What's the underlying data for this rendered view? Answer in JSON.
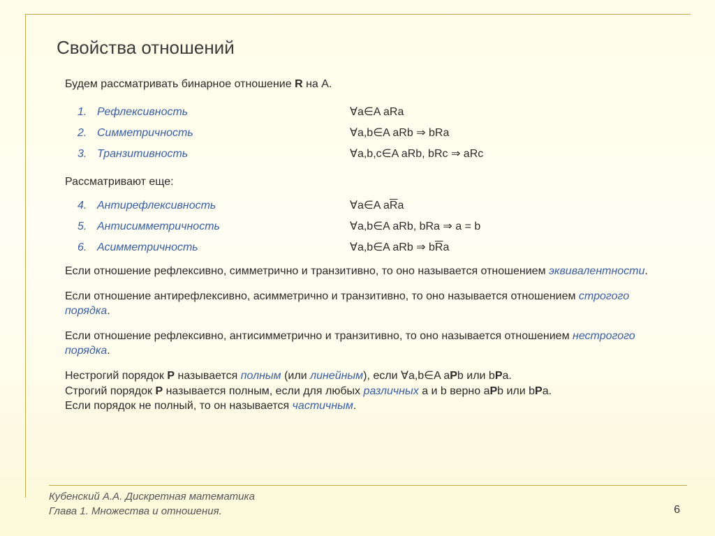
{
  "style": {
    "bg_gradient_top": "#fffde8",
    "bg_gradient_bottom": "#fbf9d8",
    "accent_color": "#385ea8",
    "frame_color": "#c9a84a",
    "text_color": "#2a2a2a",
    "title_fontsize": 26,
    "body_fontsize": 16,
    "footer_fontsize": 15,
    "font_family": "Arial"
  },
  "title": "Свойства отношений",
  "intro_pre": "Будем рассматривать бинарное отношение ",
  "intro_R": "R",
  "intro_post": " на A.",
  "properties1": [
    {
      "n": "1.",
      "name": "Рефлексивность",
      "formula": "∀a∈A  aRa"
    },
    {
      "n": "2.",
      "name": "Симметричность",
      "formula": "∀a,b∈A  aRb  ⇒  bRa"
    },
    {
      "n": "3.",
      "name": "Транзитивность",
      "formula": "∀a,b,c∈A  aRb, bRc  ⇒  aRc"
    }
  ],
  "sub2": "Рассматривают еще:",
  "properties2": [
    {
      "n": "4.",
      "name": "Антирефлексивность",
      "formula_pre": "∀a∈A  a",
      "formula_over": "R",
      "formula_post": "a"
    },
    {
      "n": "5.",
      "name": "Антисимметричность",
      "formula_pre": "∀a,b∈A  aRb, bRa  ⇒  a = b",
      "formula_over": "",
      "formula_post": ""
    },
    {
      "n": "6.",
      "name": "Асимметричность",
      "formula_pre": "∀a,b∈A  aRb  ⇒  b",
      "formula_over": "R",
      "formula_post": "a"
    }
  ],
  "para1_pre": "Если отношение рефлексивно, симметрично и транзитивно, то оно называется отношением ",
  "para1_term": "эквивалентности",
  "para1_post": ".",
  "para2_pre": "Если отношение антирефлексивно, асимметрично и транзитивно, то оно называется отношением ",
  "para2_term": "строгого порядка",
  "para2_post": ".",
  "para3_pre": "Если отношение рефлексивно, антисимметрично и транзитивно, то оно называется отношением ",
  "para3_term": "нестрогого порядка",
  "para3_post": ".",
  "para4_a": "Нестрогий порядок ",
  "para4_P1": "P",
  "para4_b": " называется ",
  "para4_term1": "полным",
  "para4_c": " (или ",
  "para4_term2": "линейным",
  "para4_d": "), если ∀a,b∈A  a",
  "para4_P2": "P",
  "para4_e": "b  или  b",
  "para4_P3": "P",
  "para4_f": "a.",
  "para5_a": "Строгий порядок ",
  "para5_P1": "P",
  "para5_b": " называется полным, если для любых ",
  "para5_term": "различных",
  "para5_c": " a и b верно a",
  "para5_P2": "P",
  "para5_d": "b  или  b",
  "para5_P3": "P",
  "para5_e": "a.",
  "para6_pre": "Если порядок не полный, то он называется ",
  "para6_term": "частичным",
  "para6_post": ".",
  "footer_line1": "Кубенский А.А. Дискретная математика",
  "footer_line2": "Глава 1. Множества и отношения.",
  "page_number": "6"
}
